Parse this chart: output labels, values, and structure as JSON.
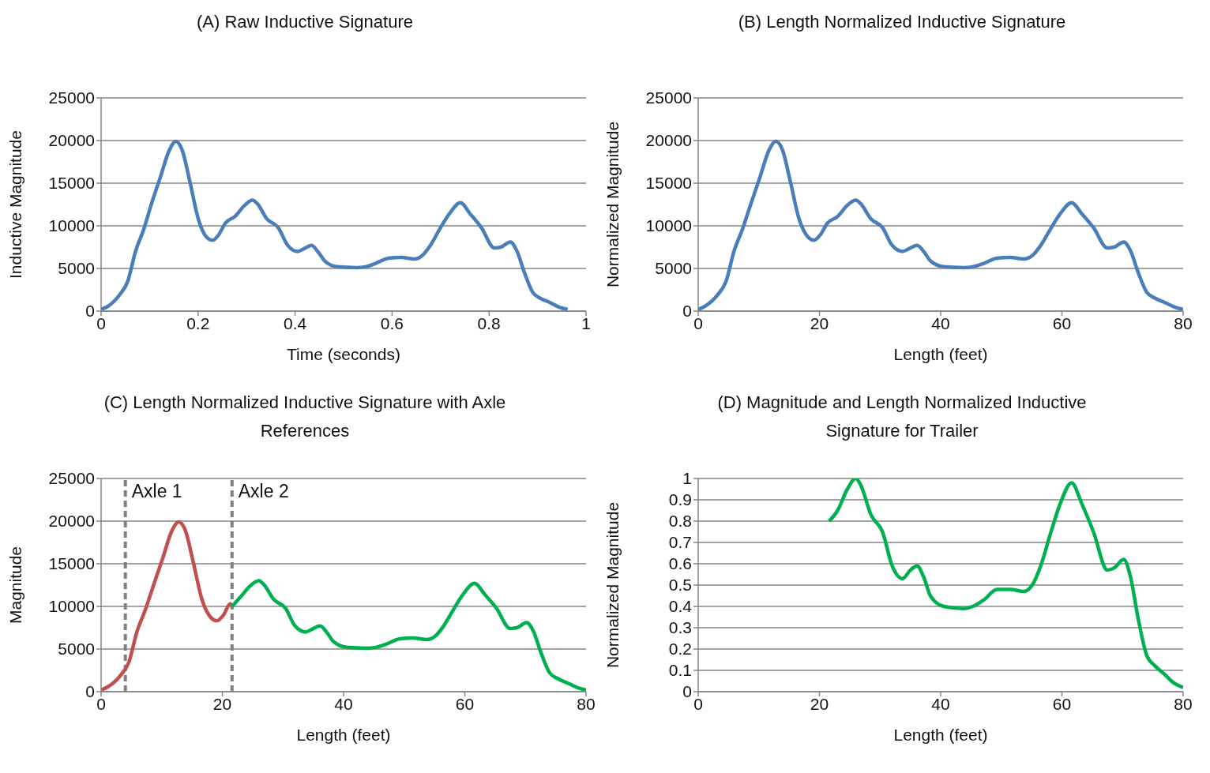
{
  "chart_data": [
    {
      "type": "line",
      "title": "(A) Raw Inductive Signature",
      "xlabel": "Time (seconds)",
      "ylabel": "Inductive Magnitude",
      "xlim": [
        0,
        1
      ],
      "xticks": [
        0,
        0.2,
        0.4,
        0.6,
        0.8,
        1
      ],
      "ylim": [
        0,
        25000
      ],
      "yticks": [
        0,
        5000,
        10000,
        15000,
        20000,
        25000
      ],
      "grid": "y",
      "series": [
        {
          "color": "#4a7ebb",
          "x": [
            0,
            0.015,
            0.038,
            0.055,
            0.071,
            0.088,
            0.104,
            0.121,
            0.141,
            0.154,
            0.167,
            0.183,
            0.2,
            0.217,
            0.23,
            0.243,
            0.256,
            0.276,
            0.296,
            0.312,
            0.322,
            0.342,
            0.365,
            0.385,
            0.405,
            0.421,
            0.434,
            0.448,
            0.461,
            0.487,
            0.527,
            0.545,
            0.566,
            0.593,
            0.619,
            0.646,
            0.662,
            0.679,
            0.698,
            0.718,
            0.741,
            0.761,
            0.784,
            0.811,
            0.824,
            0.844,
            0.857,
            0.873,
            0.89,
            0.906,
            0.926,
            0.943,
            0.962
          ],
          "values": [
            200,
            600,
            1900,
            3500,
            7000,
            9600,
            12600,
            15500,
            18900,
            19900,
            18900,
            15200,
            10900,
            8700,
            8300,
            9000,
            10300,
            11100,
            12400,
            13000,
            12600,
            10800,
            9800,
            7700,
            7000,
            7400,
            7700,
            6900,
            5900,
            5200,
            5100,
            5200,
            5600,
            6200,
            6300,
            6100,
            6500,
            7700,
            9600,
            11400,
            12700,
            11400,
            9800,
            7400,
            7500,
            8100,
            7100,
            4500,
            2200,
            1500,
            1000,
            500,
            200
          ]
        }
      ]
    },
    {
      "type": "line",
      "title": "(B) Length Normalized Inductive Signature",
      "xlabel": "Length (feet)",
      "ylabel": "Normalized Magnitude",
      "xlim": [
        0,
        80
      ],
      "xticks": [
        0,
        20,
        40,
        60,
        80
      ],
      "ylim": [
        0,
        25000
      ],
      "yticks": [
        0,
        5000,
        10000,
        15000,
        20000,
        25000
      ],
      "grid": "y",
      "series": [
        {
          "color": "#4a7ebb",
          "x": [
            0,
            1.2,
            3.2,
            4.6,
            5.9,
            7.3,
            8.7,
            10.1,
            11.7,
            12.8,
            13.9,
            15.2,
            16.6,
            18.1,
            19.1,
            20.2,
            21.3,
            23,
            24.6,
            26,
            26.8,
            28.5,
            30.4,
            32,
            33.7,
            35,
            36.1,
            37.3,
            38.3,
            40.5,
            43.8,
            45.3,
            47.1,
            49.3,
            51.5,
            53.7,
            55.1,
            56.5,
            58.1,
            59.7,
            61.6,
            63.3,
            65.2,
            67.5,
            68.6,
            70.2,
            71.3,
            72.6,
            74,
            75.4,
            77,
            78.5,
            80
          ],
          "values": [
            200,
            600,
            1900,
            3500,
            7000,
            9600,
            12600,
            15500,
            18900,
            19900,
            18900,
            15200,
            10900,
            8700,
            8300,
            9000,
            10300,
            11100,
            12400,
            13000,
            12600,
            10800,
            9800,
            7700,
            7000,
            7400,
            7700,
            6900,
            5900,
            5200,
            5100,
            5200,
            5600,
            6200,
            6300,
            6100,
            6500,
            7700,
            9600,
            11400,
            12700,
            11400,
            9800,
            7400,
            7500,
            8100,
            7100,
            4500,
            2200,
            1500,
            1000,
            500,
            200
          ]
        }
      ]
    },
    {
      "type": "line",
      "title": "(C) Length Normalized Inductive Signature with Axle References",
      "xlabel": "Length (feet)",
      "ylabel": "Magnitude",
      "xlim": [
        0,
        80
      ],
      "xticks": [
        0,
        20,
        40,
        60,
        80
      ],
      "ylim": [
        0,
        25000
      ],
      "yticks": [
        0,
        5000,
        10000,
        15000,
        20000,
        25000
      ],
      "grid": "y",
      "ref_lines": [
        {
          "axis": "x",
          "value": 4,
          "label": "Axle 1",
          "color": "#808080",
          "line_style": "dashed"
        },
        {
          "axis": "x",
          "value": 21.6,
          "label": "Axle 2",
          "color": "#808080",
          "line_style": "dashed"
        }
      ],
      "series": [
        {
          "color": "#c0504d",
          "x": [
            0,
            1.2,
            3.2,
            4.6,
            5.9,
            7.3,
            8.7,
            10.1,
            11.7,
            12.8,
            13.9,
            15.2,
            16.6,
            18.1,
            19.1,
            20.2,
            21.3,
            21.6
          ],
          "values": [
            200,
            600,
            1900,
            3500,
            7000,
            9600,
            12600,
            15500,
            18900,
            19900,
            18900,
            15200,
            10900,
            8700,
            8300,
            9000,
            10300,
            10000
          ]
        },
        {
          "color": "#00b050",
          "x": [
            21.6,
            23,
            24.6,
            26,
            26.8,
            28.5,
            30.4,
            32,
            33.7,
            35,
            36.1,
            37.3,
            38.3,
            40.5,
            43.8,
            45.3,
            47.1,
            49.3,
            51.5,
            53.7,
            55.1,
            56.5,
            58.1,
            59.7,
            61.6,
            63.3,
            65.2,
            67.5,
            68.6,
            70.2,
            71.3,
            72.6,
            74,
            75.4,
            77,
            78.5,
            80
          ],
          "values": [
            10000,
            11100,
            12400,
            13000,
            12600,
            10800,
            9800,
            7700,
            7000,
            7400,
            7700,
            6900,
            5900,
            5200,
            5100,
            5200,
            5600,
            6200,
            6300,
            6100,
            6500,
            7700,
            9600,
            11400,
            12700,
            11400,
            9800,
            7400,
            7500,
            8100,
            7100,
            4500,
            2200,
            1500,
            1000,
            500,
            200
          ]
        }
      ]
    },
    {
      "type": "line",
      "title": "(D) Magnitude and Length Normalized Inductive Signature for Trailer",
      "xlabel": "Length (feet)",
      "ylabel": "Normalized Magnitude",
      "xlim": [
        0,
        80
      ],
      "xticks": [
        0,
        20,
        40,
        60,
        80
      ],
      "ylim": [
        0,
        1
      ],
      "yticks": [
        0,
        0.1,
        0.2,
        0.3,
        0.4,
        0.5,
        0.6,
        0.7,
        0.8,
        0.9,
        1
      ],
      "grid": "y",
      "series": [
        {
          "color": "#00b050",
          "x": [
            21.6,
            23,
            24.6,
            26,
            26.8,
            28.5,
            30.4,
            32,
            33.7,
            35,
            36.1,
            37.3,
            38.3,
            40.5,
            43.8,
            45.3,
            47.1,
            49.3,
            51.5,
            53.7,
            55.1,
            56.5,
            58.1,
            59.7,
            61.6,
            63.3,
            65.2,
            67.5,
            68.6,
            70.2,
            71.3,
            72.6,
            74,
            75.4,
            77,
            78.5,
            80
          ],
          "values": [
            0.8,
            0.85,
            0.95,
            1,
            0.97,
            0.83,
            0.75,
            0.59,
            0.53,
            0.57,
            0.59,
            0.53,
            0.45,
            0.4,
            0.39,
            0.4,
            0.43,
            0.48,
            0.48,
            0.47,
            0.5,
            0.59,
            0.74,
            0.88,
            0.98,
            0.88,
            0.75,
            0.57,
            0.58,
            0.62,
            0.54,
            0.34,
            0.17,
            0.12,
            0.08,
            0.04,
            0.02
          ]
        }
      ]
    }
  ]
}
